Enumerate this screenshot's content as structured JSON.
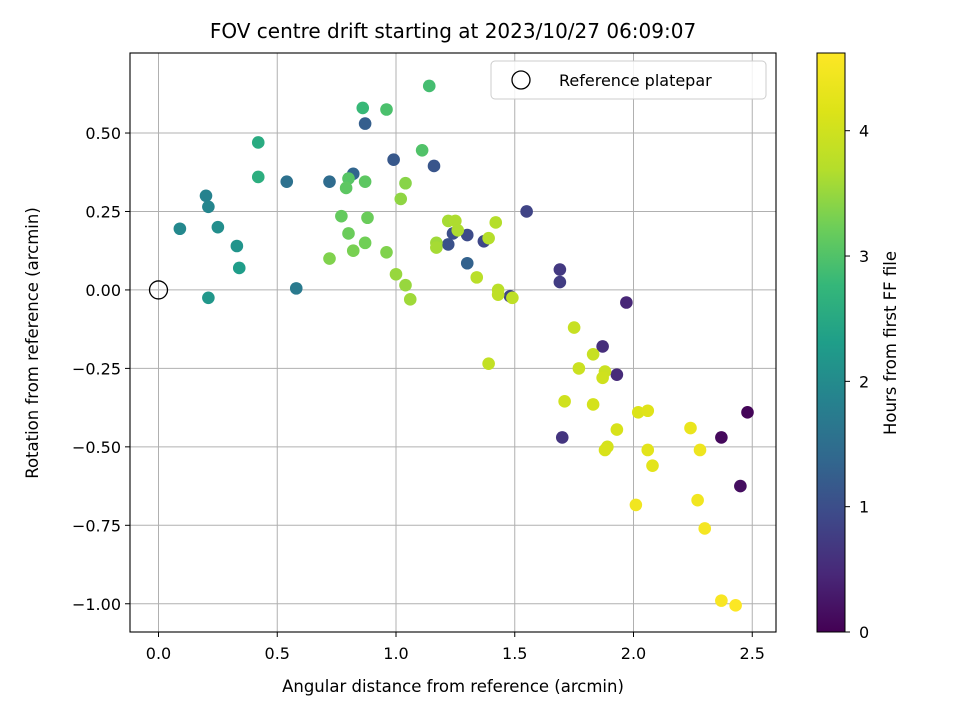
{
  "chart_data": {
    "type": "scatter",
    "title": "FOV centre drift starting at 2023/10/27 06:09:07",
    "xlabel": "Angular distance from reference (arcmin)",
    "ylabel": "Rotation from reference (arcmin)",
    "xlim": [
      -0.12,
      2.6
    ],
    "ylim": [
      -1.09,
      0.755
    ],
    "xticks": [
      0.0,
      0.5,
      1.0,
      1.5,
      2.0,
      2.5
    ],
    "xtick_labels": [
      "0.0",
      "0.5",
      "1.0",
      "1.5",
      "2.0",
      "2.5"
    ],
    "yticks": [
      0.5,
      0.25,
      0.0,
      -0.25,
      -0.5,
      -0.75,
      -1.0
    ],
    "ytick_labels": [
      "0.50",
      "0.25",
      "0.00",
      "−0.25",
      "−0.50",
      "−0.75",
      "−1.00"
    ],
    "grid": true,
    "legend": {
      "position": "top-right",
      "entries": [
        "Reference platepar"
      ]
    },
    "reference_point": {
      "x": 0.0,
      "y": 0.0
    },
    "colorbar": {
      "label": "Hours from first FF file",
      "range": [
        0,
        4.62
      ],
      "ticks": [
        0,
        1,
        2,
        3,
        4
      ],
      "tick_labels": [
        "0",
        "1",
        "2",
        "3",
        "4"
      ],
      "colormap": "viridis"
    },
    "points": [
      {
        "x": 2.48,
        "y": -0.39,
        "h": 0.05
      },
      {
        "x": 2.37,
        "y": -0.47,
        "h": 0.1
      },
      {
        "x": 2.45,
        "y": -0.625,
        "h": 0.15
      },
      {
        "x": 1.97,
        "y": -0.04,
        "h": 0.45
      },
      {
        "x": 1.93,
        "y": -0.27,
        "h": 0.5
      },
      {
        "x": 1.87,
        "y": -0.18,
        "h": 0.55
      },
      {
        "x": 1.7,
        "y": -0.47,
        "h": 0.65
      },
      {
        "x": 1.69,
        "y": 0.065,
        "h": 0.7
      },
      {
        "x": 1.69,
        "y": 0.025,
        "h": 0.75
      },
      {
        "x": 1.55,
        "y": 0.25,
        "h": 0.85
      },
      {
        "x": 1.48,
        "y": -0.02,
        "h": 0.85
      },
      {
        "x": 1.37,
        "y": 0.155,
        "h": 0.9
      },
      {
        "x": 1.3,
        "y": 0.175,
        "h": 0.95
      },
      {
        "x": 1.24,
        "y": 0.18,
        "h": 1.0
      },
      {
        "x": 1.22,
        "y": 0.145,
        "h": 1.05
      },
      {
        "x": 1.16,
        "y": 0.395,
        "h": 1.1
      },
      {
        "x": 0.99,
        "y": 0.415,
        "h": 1.15
      },
      {
        "x": 0.87,
        "y": 0.53,
        "h": 1.25
      },
      {
        "x": 1.3,
        "y": 0.085,
        "h": 1.3
      },
      {
        "x": 0.82,
        "y": 0.37,
        "h": 1.35
      },
      {
        "x": 0.72,
        "y": 0.345,
        "h": 1.45
      },
      {
        "x": 0.54,
        "y": 0.345,
        "h": 1.55
      },
      {
        "x": 0.58,
        "y": 0.005,
        "h": 1.7
      },
      {
        "x": 0.2,
        "y": 0.3,
        "h": 1.85
      },
      {
        "x": 0.21,
        "y": 0.265,
        "h": 1.9
      },
      {
        "x": 0.09,
        "y": 0.195,
        "h": 1.95
      },
      {
        "x": 0.25,
        "y": 0.2,
        "h": 2.05
      },
      {
        "x": 0.33,
        "y": 0.14,
        "h": 2.15
      },
      {
        "x": 0.21,
        "y": -0.025,
        "h": 2.2
      },
      {
        "x": 0.34,
        "y": 0.07,
        "h": 2.3
      },
      {
        "x": 0.42,
        "y": 0.47,
        "h": 2.55
      },
      {
        "x": 0.42,
        "y": 0.36,
        "h": 2.6
      },
      {
        "x": 0.86,
        "y": 0.58,
        "h": 2.8
      },
      {
        "x": 1.14,
        "y": 0.65,
        "h": 2.9
      },
      {
        "x": 0.96,
        "y": 0.575,
        "h": 2.95
      },
      {
        "x": 1.11,
        "y": 0.445,
        "h": 3.0
      },
      {
        "x": 0.8,
        "y": 0.355,
        "h": 3.05
      },
      {
        "x": 0.87,
        "y": 0.345,
        "h": 3.1
      },
      {
        "x": 0.79,
        "y": 0.325,
        "h": 3.1
      },
      {
        "x": 0.77,
        "y": 0.235,
        "h": 3.15
      },
      {
        "x": 0.88,
        "y": 0.23,
        "h": 3.2
      },
      {
        "x": 0.8,
        "y": 0.18,
        "h": 3.2
      },
      {
        "x": 0.87,
        "y": 0.15,
        "h": 3.25
      },
      {
        "x": 0.82,
        "y": 0.125,
        "h": 3.3
      },
      {
        "x": 0.72,
        "y": 0.1,
        "h": 3.35
      },
      {
        "x": 0.96,
        "y": 0.12,
        "h": 3.35
      },
      {
        "x": 1.04,
        "y": 0.34,
        "h": 3.4
      },
      {
        "x": 1.02,
        "y": 0.29,
        "h": 3.45
      },
      {
        "x": 1.0,
        "y": 0.05,
        "h": 3.5
      },
      {
        "x": 1.04,
        "y": 0.015,
        "h": 3.5
      },
      {
        "x": 1.06,
        "y": -0.03,
        "h": 3.55
      },
      {
        "x": 1.17,
        "y": 0.15,
        "h": 3.55
      },
      {
        "x": 1.17,
        "y": 0.135,
        "h": 3.6
      },
      {
        "x": 1.22,
        "y": 0.22,
        "h": 3.6
      },
      {
        "x": 1.25,
        "y": 0.22,
        "h": 3.65
      },
      {
        "x": 1.26,
        "y": 0.19,
        "h": 3.65
      },
      {
        "x": 1.39,
        "y": 0.165,
        "h": 3.7
      },
      {
        "x": 1.42,
        "y": 0.215,
        "h": 3.7
      },
      {
        "x": 1.34,
        "y": 0.04,
        "h": 3.75
      },
      {
        "x": 1.43,
        "y": 0.0,
        "h": 3.75
      },
      {
        "x": 1.43,
        "y": -0.015,
        "h": 3.8
      },
      {
        "x": 1.49,
        "y": -0.025,
        "h": 3.8
      },
      {
        "x": 1.39,
        "y": -0.235,
        "h": 3.85
      },
      {
        "x": 1.75,
        "y": -0.12,
        "h": 3.9
      },
      {
        "x": 1.83,
        "y": -0.205,
        "h": 3.9
      },
      {
        "x": 1.77,
        "y": -0.25,
        "h": 3.95
      },
      {
        "x": 1.88,
        "y": -0.26,
        "h": 3.95
      },
      {
        "x": 1.87,
        "y": -0.28,
        "h": 4.0
      },
      {
        "x": 1.71,
        "y": -0.355,
        "h": 4.0
      },
      {
        "x": 1.83,
        "y": -0.365,
        "h": 4.05
      },
      {
        "x": 1.89,
        "y": -0.5,
        "h": 4.05
      },
      {
        "x": 1.88,
        "y": -0.51,
        "h": 4.1
      },
      {
        "x": 1.93,
        "y": -0.445,
        "h": 4.1
      },
      {
        "x": 2.02,
        "y": -0.39,
        "h": 4.15
      },
      {
        "x": 2.06,
        "y": -0.385,
        "h": 4.2
      },
      {
        "x": 2.06,
        "y": -0.51,
        "h": 4.25
      },
      {
        "x": 2.08,
        "y": -0.56,
        "h": 4.25
      },
      {
        "x": 2.24,
        "y": -0.44,
        "h": 4.35
      },
      {
        "x": 2.28,
        "y": -0.51,
        "h": 4.4
      },
      {
        "x": 2.01,
        "y": -0.685,
        "h": 4.45
      },
      {
        "x": 2.27,
        "y": -0.67,
        "h": 4.45
      },
      {
        "x": 2.3,
        "y": -0.76,
        "h": 4.5
      },
      {
        "x": 2.37,
        "y": -0.99,
        "h": 4.55
      },
      {
        "x": 2.43,
        "y": -1.005,
        "h": 4.6
      }
    ]
  }
}
